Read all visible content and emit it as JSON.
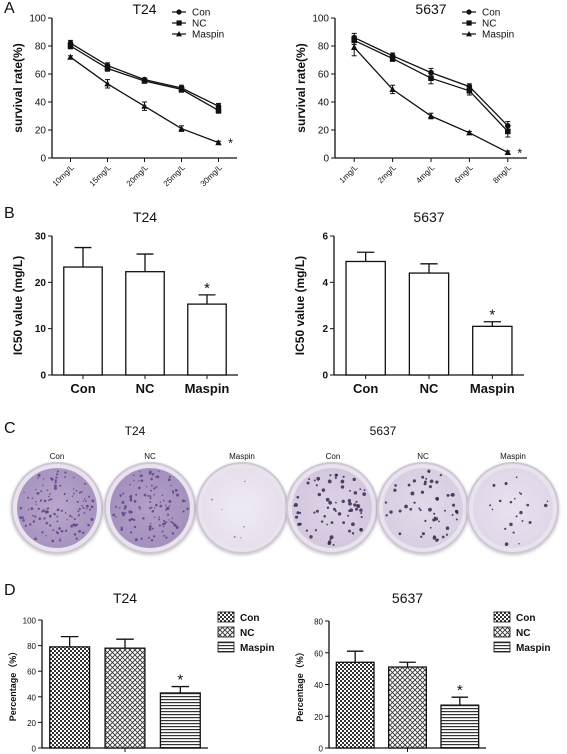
{
  "panels": {
    "A": "A",
    "B": "B",
    "C": "C",
    "D": "D"
  },
  "chart_data": [
    {
      "id": "A-T24",
      "type": "line",
      "title": "T24",
      "xlabel": "",
      "ylabel": "survival rate(%)",
      "categories": [
        "10mg/L",
        "15mg/L",
        "20mg/L",
        "25mg/L",
        "30mg/L"
      ],
      "ylim": [
        0,
        100
      ],
      "yticks": [
        0,
        20,
        40,
        60,
        80,
        100
      ],
      "legend": "top-right",
      "series": [
        {
          "name": "Con",
          "marker": "circle",
          "values": [
            82,
            66,
            56,
            50,
            37
          ],
          "err": [
            2,
            2,
            1,
            2,
            2
          ]
        },
        {
          "name": "NC",
          "marker": "square",
          "values": [
            80,
            64,
            55,
            49,
            34
          ],
          "err": [
            2,
            2,
            1,
            2,
            2
          ]
        },
        {
          "name": "Maspin",
          "marker": "triangle",
          "values": [
            72,
            53,
            37,
            21,
            11
          ],
          "err": [
            1,
            3,
            3,
            2,
            1
          ]
        }
      ],
      "annotation": "*"
    },
    {
      "id": "A-5637",
      "type": "line",
      "title": "5637",
      "xlabel": "",
      "ylabel": "survival rate(%)",
      "categories": [
        "1mg/L",
        "2mg/L",
        "4mg/L",
        "6mg/L",
        "8mg/L"
      ],
      "ylim": [
        0,
        100
      ],
      "yticks": [
        0,
        20,
        40,
        60,
        80,
        100
      ],
      "legend": "top-right",
      "series": [
        {
          "name": "Con",
          "marker": "circle",
          "values": [
            86,
            73,
            61,
            51,
            23
          ],
          "err": [
            3,
            2,
            3,
            2,
            3
          ]
        },
        {
          "name": "NC",
          "marker": "square",
          "values": [
            84,
            71,
            57,
            48,
            19
          ],
          "err": [
            3,
            2,
            4,
            3,
            4
          ]
        },
        {
          "name": "Maspin",
          "marker": "triangle",
          "values": [
            79,
            49,
            30,
            18,
            4
          ],
          "err": [
            6,
            3,
            2,
            1,
            1
          ]
        }
      ],
      "annotation": "*"
    },
    {
      "id": "B-T24",
      "type": "bar",
      "title": "T24",
      "xlabel": "",
      "ylabel": "IC50 value (mg/L)",
      "categories": [
        "Con",
        "NC",
        "Maspin"
      ],
      "values": [
        23.3,
        22.3,
        15.3
      ],
      "err": [
        4.2,
        3.8,
        2.0
      ],
      "ylim": [
        0,
        30
      ],
      "yticks": [
        0,
        10,
        20,
        30
      ],
      "annotation": "*"
    },
    {
      "id": "B-5637",
      "type": "bar",
      "title": "5637",
      "xlabel": "",
      "ylabel": "IC50 value (mg/L)",
      "categories": [
        "Con",
        "NC",
        "Maspin"
      ],
      "values": [
        4.9,
        4.4,
        2.1
      ],
      "err": [
        0.4,
        0.4,
        0.2
      ],
      "ylim": [
        0,
        6
      ],
      "yticks": [
        0,
        2,
        4,
        6
      ],
      "annotation": "*"
    },
    {
      "id": "D-T24",
      "type": "bar",
      "title": "T24",
      "xlabel": "",
      "ylabel": "Percentage（%）",
      "categories": [
        "Con",
        "NC",
        "Maspin"
      ],
      "values": [
        79,
        78,
        43
      ],
      "err": [
        8,
        7,
        5
      ],
      "ylim": [
        0,
        100
      ],
      "yticks": [
        0,
        20,
        40,
        60,
        80,
        100
      ],
      "legend": "right",
      "legend_entries": [
        "Con",
        "NC",
        "Maspin"
      ],
      "annotation": "*"
    },
    {
      "id": "D-5637",
      "type": "bar",
      "title": "5637",
      "xlabel": "",
      "ylabel": "Percentage（%）",
      "categories": [
        "Con",
        "NC",
        "Maspin"
      ],
      "values": [
        54,
        51,
        27
      ],
      "err": [
        7,
        3,
        5
      ],
      "ylim": [
        0,
        80
      ],
      "yticks": [
        0,
        20,
        40,
        60,
        80
      ],
      "legend": "right",
      "legend_entries": [
        "Con",
        "NC",
        "Maspin"
      ],
      "annotation": "*"
    }
  ],
  "colony_photos": {
    "titles": [
      "T24",
      "5637"
    ],
    "labels": [
      "Con",
      "NC",
      "Maspin",
      "Con",
      "NC",
      "Maspin"
    ]
  }
}
